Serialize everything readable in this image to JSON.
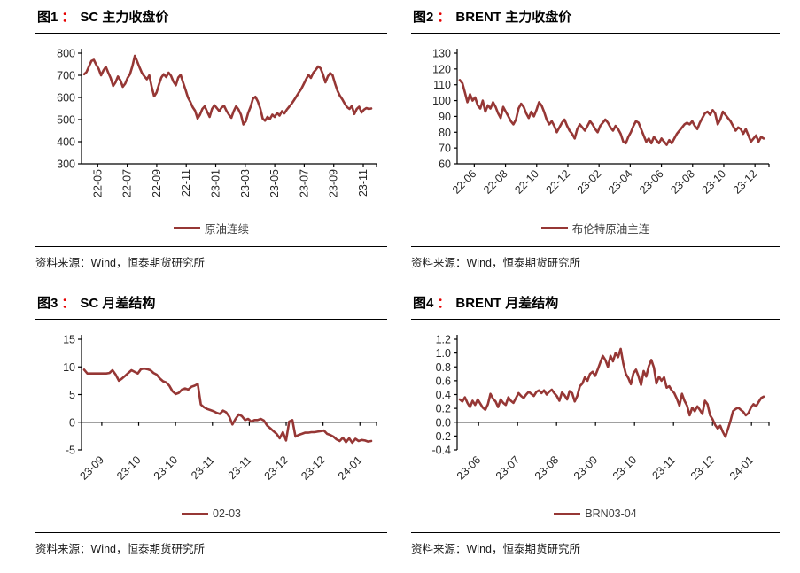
{
  "page": {
    "background": "#ffffff",
    "accent_red": "#e60000",
    "line_color": "#963735"
  },
  "chart_data": [
    {
      "type": "line",
      "figure_label": "图1",
      "colon": "：",
      "title": "SC 主力收盘价",
      "legend": "原油连续",
      "source": "资料来源：Wind，恒泰期货研究所",
      "line_color": "#963735",
      "ylim": [
        300,
        800
      ],
      "yticks": [
        "800",
        "700",
        "600",
        "500",
        "400",
        "300"
      ],
      "xticklabels": [
        "22-05",
        "22-07",
        "22-09",
        "22-11",
        "23-01",
        "23-03",
        "23-05",
        "23-07",
        "23-09",
        "23-11"
      ],
      "xtick_rotation": 90,
      "grid": false,
      "legend_position": "bottom",
      "values": [
        705,
        715,
        740,
        765,
        770,
        748,
        730,
        700,
        722,
        738,
        712,
        688,
        652,
        668,
        695,
        678,
        648,
        662,
        688,
        705,
        742,
        788,
        762,
        735,
        710,
        695,
        682,
        700,
        648,
        605,
        622,
        658,
        690,
        705,
        692,
        712,
        698,
        672,
        655,
        690,
        702,
        668,
        635,
        600,
        580,
        556,
        540,
        505,
        522,
        548,
        560,
        535,
        512,
        548,
        565,
        552,
        538,
        555,
        562,
        540,
        522,
        508,
        538,
        560,
        545,
        522,
        478,
        492,
        530,
        558,
        595,
        603,
        582,
        550,
        505,
        495,
        512,
        502,
        522,
        512,
        530,
        518,
        538,
        528,
        545,
        558,
        572,
        588,
        605,
        622,
        638,
        660,
        682,
        702,
        688,
        712,
        725,
        740,
        732,
        705,
        668,
        695,
        710,
        700,
        662,
        630,
        608,
        592,
        572,
        556,
        548,
        562,
        525,
        548,
        558,
        532,
        545,
        552,
        548,
        550
      ]
    },
    {
      "type": "line",
      "figure_label": "图2",
      "colon": "：",
      "title": "BRENT 主力收盘价",
      "legend": "布伦特原油主连",
      "source": "资料来源：Wind，恒泰期货研究所",
      "line_color": "#963735",
      "ylim": [
        60,
        130
      ],
      "yticks": [
        "130",
        "120",
        "110",
        "100",
        "90",
        "80",
        "70",
        "60"
      ],
      "xticklabels": [
        "22-06",
        "22-08",
        "22-10",
        "22-12",
        "23-02",
        "23-04",
        "23-06",
        "23-08",
        "23-10",
        "23-12"
      ],
      "xtick_rotation": 45,
      "grid": false,
      "legend_position": "bottom",
      "values": [
        113,
        111,
        105,
        99,
        104,
        100,
        102,
        97,
        95,
        100,
        93,
        97,
        95,
        99,
        96,
        92,
        89,
        96,
        93,
        90,
        87,
        85,
        88,
        95,
        98,
        96,
        92,
        89,
        93,
        90,
        94,
        99,
        97,
        93,
        88,
        85,
        87,
        84,
        80,
        83,
        86,
        88,
        84,
        81,
        79,
        76,
        82,
        85,
        83,
        81,
        84,
        87,
        85,
        82,
        80,
        84,
        86,
        88,
        86,
        83,
        81,
        84,
        82,
        79,
        74,
        73,
        77,
        80,
        84,
        87,
        86,
        82,
        78,
        74,
        76,
        73,
        77,
        75,
        73,
        76,
        74,
        72,
        75,
        73,
        76,
        79,
        81,
        83,
        85,
        86,
        85,
        87,
        84,
        82,
        86,
        89,
        92,
        93,
        91,
        94,
        92,
        85,
        88,
        93,
        91,
        89,
        87,
        84,
        81,
        83,
        82,
        79,
        82,
        78,
        74,
        76,
        78,
        74,
        77,
        76
      ]
    },
    {
      "type": "line",
      "figure_label": "图3",
      "colon": "：",
      "title": "SC 月差结构",
      "legend": "02-03",
      "source": "资料来源：Wind，恒泰期货研究所",
      "line_color": "#963735",
      "ylim": [
        -5,
        15
      ],
      "yticks": [
        "15",
        "10",
        "5",
        "0",
        "-5"
      ],
      "xticklabels": [
        "23-09",
        "23-10",
        "23-10",
        "23-11",
        "23-11",
        "23-12",
        "23-12",
        "24-01"
      ],
      "xtick_rotation": 45,
      "grid": false,
      "legend_position": "bottom",
      "values": [
        9.5,
        8.8,
        8.8,
        8.8,
        8.8,
        8.8,
        8.8,
        8.8,
        8.9,
        9.4,
        8.6,
        7.5,
        7.9,
        8.4,
        8.9,
        9.4,
        9.1,
        8.8,
        9.6,
        9.7,
        9.6,
        9.4,
        8.9,
        8.6,
        7.9,
        7.4,
        7.2,
        6.6,
        5.6,
        5.1,
        5.3,
        5.9,
        6.1,
        5.9,
        6.4,
        6.6,
        6.9,
        3.2,
        2.7,
        2.4,
        2.2,
        2.0,
        1.7,
        1.5,
        2.1,
        1.8,
        1.0,
        -0.4,
        0.6,
        1.4,
        1.1,
        0.4,
        0.6,
        0.1,
        0.4,
        0.4,
        0.6,
        0.3,
        -0.6,
        -1.1,
        -1.6,
        -2.1,
        -2.9,
        -1.8,
        -3.3,
        0.1,
        0.4,
        -2.6,
        -2.3,
        -2.1,
        -1.9,
        -1.9,
        -1.8,
        -1.8,
        -1.7,
        -1.6,
        -1.5,
        -2.1,
        -2.3,
        -2.6,
        -3.1,
        -3.4,
        -2.8,
        -3.6,
        -2.9,
        -3.7,
        -3.0,
        -3.4,
        -3.2,
        -3.3,
        -3.5,
        -3.4
      ]
    },
    {
      "type": "line",
      "figure_label": "图4",
      "colon": "：",
      "title": "BRENT 月差结构",
      "legend": "BRN03-04",
      "source": "资料来源：Wind，恒泰期货研究所",
      "line_color": "#963735",
      "ylim": [
        -0.4,
        1.2
      ],
      "yticks": [
        "1.2",
        "1.0",
        "0.8",
        "0.6",
        "0.4",
        "0.2",
        "0.0",
        "-0.2",
        "-0.4"
      ],
      "xticklabels": [
        "23-06",
        "23-07",
        "23-08",
        "23-09",
        "23-10",
        "23-11",
        "23-12",
        "24-01"
      ],
      "xtick_rotation": 45,
      "grid": false,
      "legend_position": "bottom",
      "values": [
        0.33,
        0.3,
        0.36,
        0.28,
        0.22,
        0.31,
        0.25,
        0.33,
        0.27,
        0.21,
        0.18,
        0.26,
        0.41,
        0.34,
        0.3,
        0.22,
        0.33,
        0.28,
        0.25,
        0.36,
        0.31,
        0.28,
        0.35,
        0.42,
        0.38,
        0.35,
        0.4,
        0.44,
        0.41,
        0.38,
        0.44,
        0.46,
        0.42,
        0.46,
        0.4,
        0.44,
        0.47,
        0.42,
        0.38,
        0.31,
        0.43,
        0.39,
        0.33,
        0.45,
        0.42,
        0.3,
        0.38,
        0.52,
        0.56,
        0.65,
        0.6,
        0.7,
        0.73,
        0.67,
        0.76,
        0.86,
        0.96,
        0.9,
        0.8,
        0.96,
        0.88,
        1.0,
        0.94,
        1.06,
        0.85,
        0.7,
        0.64,
        0.55,
        0.71,
        0.76,
        0.66,
        0.54,
        0.74,
        0.66,
        0.81,
        0.9,
        0.79,
        0.56,
        0.66,
        0.6,
        0.65,
        0.5,
        0.52,
        0.46,
        0.42,
        0.34,
        0.24,
        0.41,
        0.31,
        0.24,
        0.1,
        0.21,
        0.16,
        0.23,
        0.18,
        0.12,
        0.31,
        0.26,
        0.1,
        0.04,
        -0.04,
        -0.09,
        -0.05,
        -0.14,
        -0.21,
        -0.1,
        0.02,
        0.16,
        0.19,
        0.21,
        0.18,
        0.15,
        0.1,
        0.13,
        0.21,
        0.26,
        0.23,
        0.29,
        0.35,
        0.37
      ]
    }
  ]
}
